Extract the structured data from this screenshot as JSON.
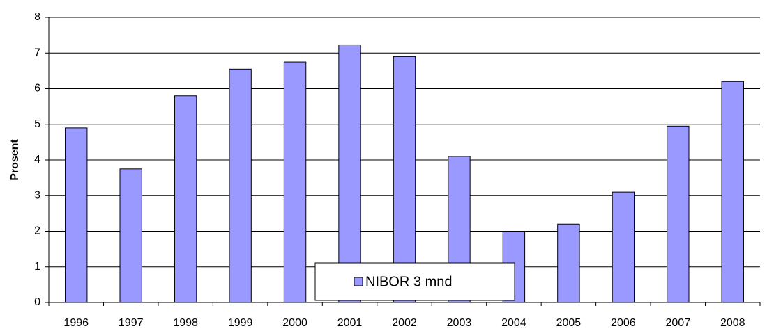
{
  "chart_data": {
    "type": "bar",
    "y_label": "Prosent",
    "categories": [
      "1996",
      "1997",
      "1998",
      "1999",
      "2000",
      "2001",
      "2002",
      "2003",
      "2004",
      "2005",
      "2006",
      "2007",
      "2008"
    ],
    "series": [
      {
        "name": "NIBOR 3 mnd",
        "color": "#9999ff",
        "values": [
          4.9,
          3.75,
          5.8,
          6.55,
          6.75,
          7.23,
          6.9,
          4.1,
          2.0,
          2.2,
          3.1,
          4.95,
          6.2
        ]
      }
    ],
    "ylim": [
      0,
      8
    ],
    "yticks": [
      0,
      1,
      2,
      3,
      4,
      5,
      6,
      7,
      8
    ],
    "grid": true,
    "legend": "bottom"
  }
}
